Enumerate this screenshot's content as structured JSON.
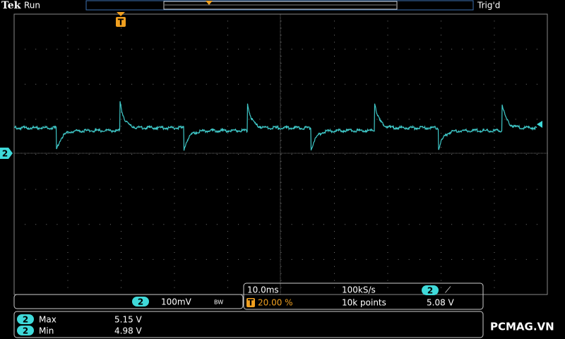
{
  "header": {
    "brand": "Tek",
    "status": "Run",
    "trigger_status": "Trig'd",
    "trigger_marker": "T"
  },
  "channel_marker": "2",
  "channel_readout": {
    "channel": "2",
    "scale": "100mV",
    "bandwidth": "BW"
  },
  "horizontal": {
    "timebase": "10.0ms",
    "trigger_icon": "T",
    "position": "20.00 %",
    "sample_rate": "100kS/s",
    "record_length": "10k points",
    "trigger_channel": "2",
    "trigger_slope": "⟋",
    "trigger_level": "5.08 V"
  },
  "measurements": [
    {
      "channel": "2",
      "name": "Max",
      "value": "5.15 V"
    },
    {
      "channel": "2",
      "name": "Min",
      "value": "4.98 V"
    }
  ],
  "watermark": "PCMAG.VN"
}
